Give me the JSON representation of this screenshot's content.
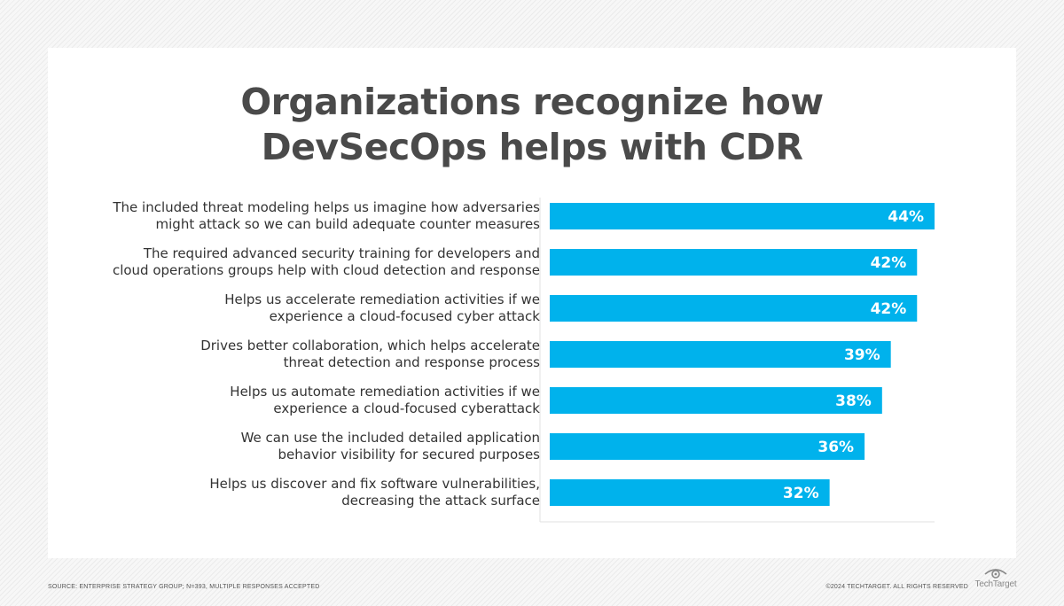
{
  "chart_data": {
    "type": "bar",
    "orientation": "horizontal",
    "title": "Organizations recognize how DevSecOps helps with CDR",
    "title_lines": [
      "Organizations recognize how",
      "DevSecOps helps with CDR"
    ],
    "categories": [
      [
        "The included threat modeling helps us imagine how adversaries",
        "might attack so we can build adequate counter measures"
      ],
      [
        "The required advanced security training for developers and",
        "cloud operations groups help with cloud detection and response"
      ],
      [
        "Helps us accelerate remediation activities if we",
        "experience a cloud-focused cyber attack"
      ],
      [
        "Drives better collaboration, which helps accelerate",
        "threat detection and response process"
      ],
      [
        "Helps us automate remediation activities if we",
        "experience a cloud-focused cyberattack"
      ],
      [
        "We can use the included detailed application",
        "behavior visibility for secured purposes"
      ],
      [
        "Helps us discover and fix software vulnerabilities,",
        "decreasing the attack surface"
      ]
    ],
    "values": [
      44,
      42,
      42,
      39,
      38,
      36,
      32
    ],
    "value_labels": [
      "44%",
      "42%",
      "42%",
      "39%",
      "38%",
      "36%",
      "32%"
    ],
    "xlim": [
      0,
      44
    ],
    "xlabel": "",
    "ylabel": "",
    "grid": false,
    "legend": "none",
    "bar_color": "#00b2ec"
  },
  "footer": {
    "source": "SOURCE: ENTERPRISE STRATEGY GROUP; N=393, MULTIPLE RESPONSES ACCEPTED",
    "copyright": "©2024 TECHTARGET. ALL RIGHTS RESERVED",
    "brand": "TechTarget"
  },
  "colors": {
    "bar": "#00b2ec",
    "title": "#4a4a4a",
    "text": "#333333"
  }
}
